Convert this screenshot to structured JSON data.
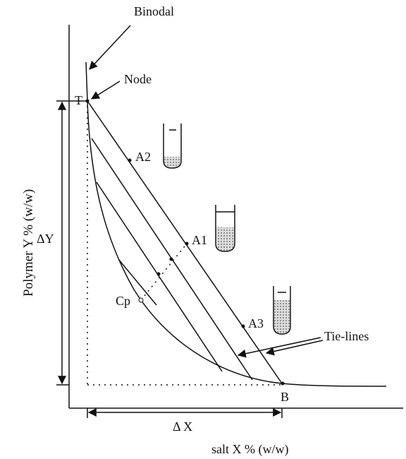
{
  "diagram": {
    "labels": {
      "binodal": "Binodal",
      "node": "Node",
      "top": "T",
      "bottom": "B",
      "a1": "A1",
      "a2": "A2",
      "a3": "A3",
      "critical_point": "Cp",
      "tie_lines": "Tie-lines",
      "delta_y": "ΔY",
      "delta_x": "Δ X"
    },
    "y_axis_title": "Polymer Y % (w/w)",
    "x_axis_title": "salt X % (w/w)"
  }
}
